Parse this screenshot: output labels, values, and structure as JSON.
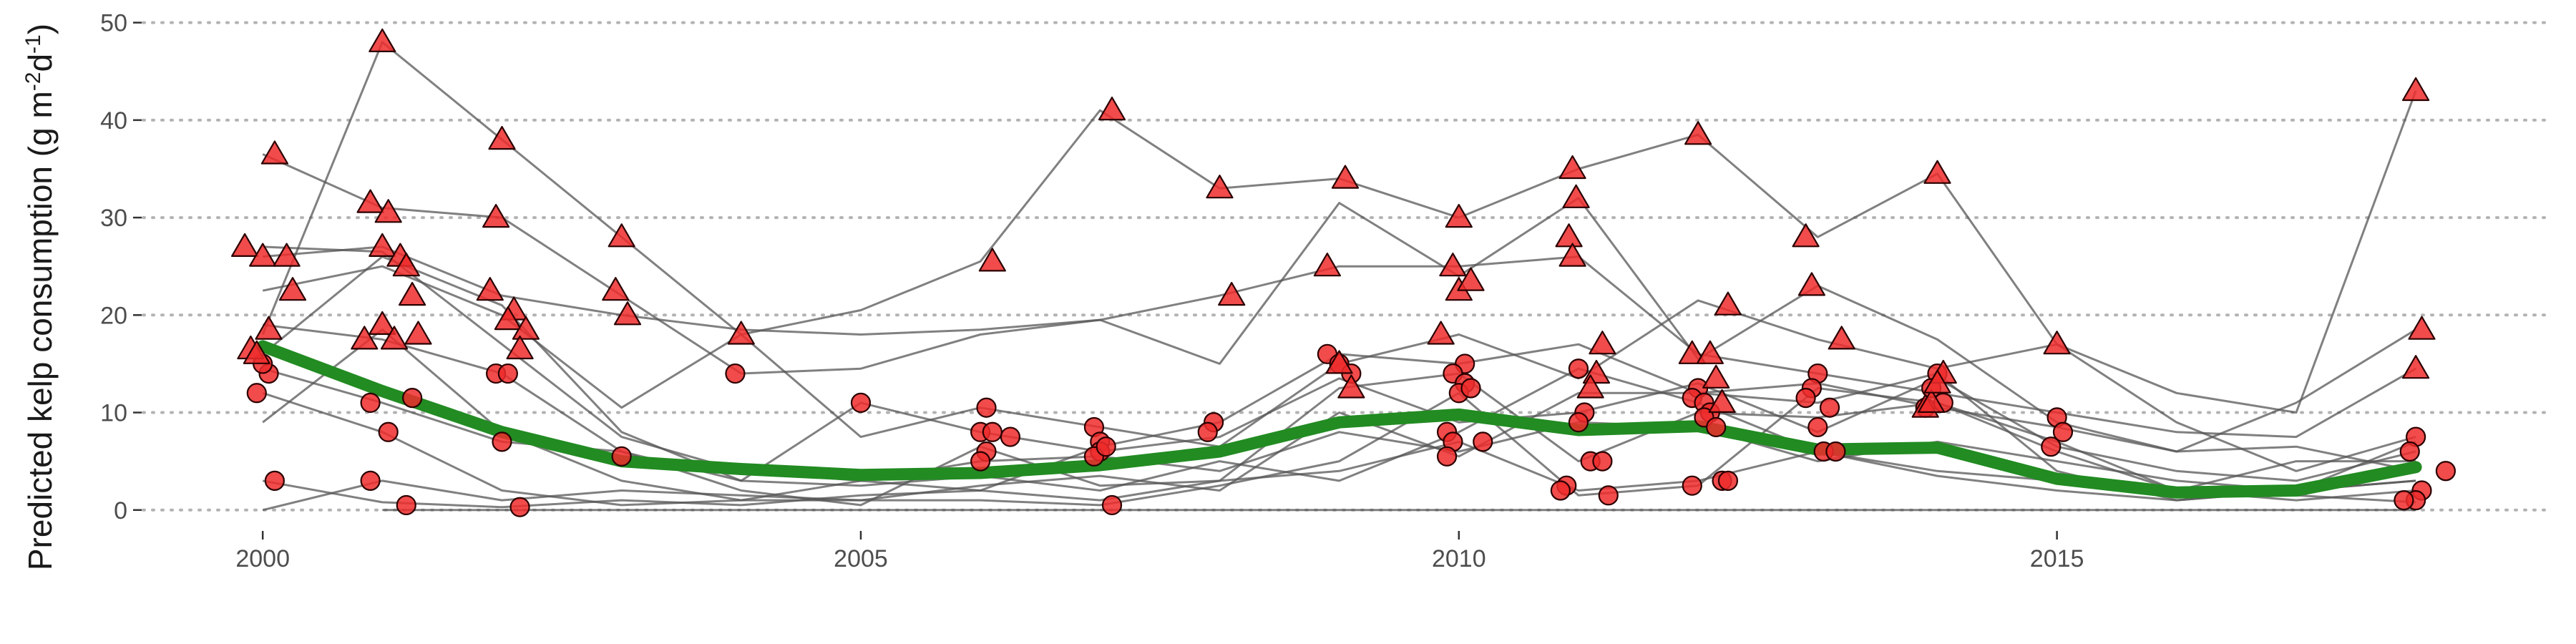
{
  "chart_data": {
    "type": "line",
    "ylabel": "Predicted kelp consumption (g m-2d-1)",
    "ylabel_parts": {
      "main": "Predicted kelp consumption (g m",
      "exp1": "-2",
      "mid": "d",
      "exp2": "-1",
      "close": ")"
    },
    "xlabel": "",
    "xlim": [
      1999.0,
      2019.1
    ],
    "ylim": [
      -2,
      51
    ],
    "x_ticks": [
      2000,
      2005,
      2010,
      2015
    ],
    "y_ticks": [
      0,
      10,
      20,
      30,
      40,
      50
    ],
    "grid": "horizontal dotted",
    "colors": {
      "site_lines": "#555555",
      "points": "#ee2c2c",
      "trend": "#228b22",
      "grid": "#b3b3b3"
    },
    "trend": {
      "name": "mean",
      "x": [
        2000,
        2001,
        2002,
        2003,
        2004,
        2005,
        2006,
        2007,
        2008,
        2009,
        2010,
        2011,
        2012,
        2013,
        2014,
        2015,
        2016,
        2017,
        2018
      ],
      "y": [
        16.8,
        12.2,
        8.0,
        5.0,
        4.2,
        3.6,
        3.8,
        4.6,
        6.0,
        9.0,
        9.8,
        8.2,
        8.6,
        6.2,
        6.4,
        3.2,
        1.8,
        2.0,
        4.4
      ]
    },
    "site_series": [
      {
        "x": [
          2000,
          2001,
          2002,
          2003,
          2004,
          2005,
          2006,
          2007,
          2008,
          2009,
          2010,
          2011,
          2012,
          2013,
          2014,
          2015,
          2016,
          2017,
          2018
        ],
        "y": [
          18,
          48,
          38,
          28,
          18,
          20.5,
          25.5,
          41,
          33,
          34,
          30,
          35,
          38.5,
          28,
          34.5,
          17,
          12,
          10,
          43
        ]
      },
      {
        "x": [
          2000,
          2001,
          2002,
          2003,
          2004,
          2005,
          2006,
          2007,
          2008,
          2009,
          2010,
          2011,
          2012,
          2013,
          2014,
          2015,
          2016,
          2017,
          2018
        ],
        "y": [
          36.5,
          31,
          30,
          22,
          14,
          14.5,
          18,
          19.5,
          15,
          31.5,
          24,
          32,
          15.5,
          23,
          17.5,
          9,
          6,
          11,
          18.5
        ]
      },
      {
        "x": [
          2000,
          2001,
          2002,
          2003,
          2004,
          2005,
          2006,
          2007,
          2008,
          2009,
          2010,
          2011,
          2012,
          2013,
          2014,
          2015,
          2016,
          2017,
          2018
        ],
        "y": [
          26,
          27,
          22,
          20,
          18.5,
          18,
          18.5,
          19.5,
          22,
          25,
          25,
          26,
          16,
          14,
          12,
          10,
          8,
          7.5,
          14.5
        ]
      },
      {
        "x": [
          2000,
          2001,
          2002,
          2003,
          2004,
          2005,
          2006,
          2007,
          2008,
          2009,
          2010,
          2011,
          2012,
          2013,
          2014,
          2015,
          2016,
          2017,
          2018
        ],
        "y": [
          22.5,
          25,
          20,
          10.5,
          18,
          7.5,
          10.5,
          8.5,
          6.5,
          15,
          18,
          13.5,
          21.5,
          17.5,
          14.5,
          17,
          9,
          4,
          7.5
        ]
      },
      {
        "x": [
          2000,
          2001,
          2002,
          2003,
          2004,
          2005,
          2006,
          2007,
          2008,
          2009,
          2010,
          2011,
          2012,
          2013,
          2014,
          2015,
          2016,
          2017,
          2018
        ],
        "y": [
          27,
          26.5,
          17,
          7.5,
          4,
          3,
          2,
          6.5,
          9,
          16,
          15,
          17,
          12,
          13,
          10.5,
          8.5,
          6,
          6.5,
          4
        ]
      },
      {
        "x": [
          2000,
          2001,
          2002,
          2003,
          2004,
          2005,
          2006,
          2007,
          2008,
          2009,
          2010,
          2011,
          2012,
          2013,
          2014,
          2015,
          2016,
          2017,
          2018
        ],
        "y": [
          19,
          17.5,
          14,
          6,
          3,
          11,
          8,
          6,
          7.5,
          13.5,
          9,
          10,
          13,
          8,
          13.5,
          6.5,
          4,
          3,
          6
        ]
      },
      {
        "x": [
          2000,
          2001,
          2002,
          2003,
          2004,
          2005,
          2006,
          2007,
          2008,
          2009,
          2010,
          2011,
          2012,
          2013,
          2014,
          2015,
          2016,
          2017,
          2018
        ],
        "y": [
          14.5,
          11,
          7,
          6,
          2,
          0.5,
          6.5,
          2.5,
          3,
          12.5,
          14,
          5,
          10,
          9.5,
          11,
          7,
          2,
          1,
          2
        ]
      },
      {
        "x": [
          2000,
          2001,
          2002,
          2003,
          2004,
          2005,
          2006,
          2007,
          2008,
          2009,
          2010,
          2011,
          2012,
          2013,
          2014,
          2015,
          2016,
          2017,
          2018
        ],
        "y": [
          12,
          8,
          2,
          0.5,
          1,
          3,
          5,
          5.5,
          4,
          8,
          6,
          9,
          8.5,
          5,
          7,
          5,
          3,
          2,
          7
        ]
      },
      {
        "x": [
          2000,
          2001,
          2002,
          2003,
          2004,
          2005,
          2006,
          2007,
          2008,
          2009,
          2010,
          2011,
          2012,
          2013,
          2014,
          2015,
          2016,
          2017,
          2018
        ],
        "y": [
          3,
          0.8,
          0.3,
          1,
          0.5,
          1.5,
          2,
          1,
          3,
          4,
          7,
          2,
          3,
          6,
          3.5,
          2,
          1,
          2,
          3
        ]
      },
      {
        "x": [
          2000,
          2001,
          2002,
          2003,
          2004,
          2005,
          2006,
          2007,
          2008,
          2009,
          2010,
          2011,
          2012,
          2013,
          2014,
          2015,
          2016,
          2017,
          2018
        ],
        "y": [
          0,
          3,
          1,
          2,
          1.5,
          1,
          1,
          0.5,
          2.5,
          5,
          12,
          1.5,
          2.5,
          12.5,
          11,
          6,
          2,
          1.5,
          0.8
        ]
      },
      {
        "x": [
          2000,
          2001,
          2002,
          2003,
          2004,
          2005,
          2006,
          2007,
          2008,
          2009,
          2010,
          2011,
          2012,
          2013,
          2014,
          2015,
          2016,
          2017,
          2018
        ],
        "y": [
          16,
          26,
          21,
          8,
          3,
          2.5,
          3.5,
          2,
          5,
          3,
          8,
          14.5,
          11,
          6,
          4,
          3,
          2,
          5,
          5
        ]
      },
      {
        "x": [
          2000,
          2001,
          2002,
          2003,
          2004,
          2005,
          2006,
          2007,
          2008,
          2009,
          2010,
          2011,
          2012,
          2013,
          2014,
          2015,
          2016,
          2017,
          2018
        ],
        "y": [
          9,
          18.5,
          8,
          3,
          1,
          1,
          2.5,
          3.5,
          2,
          10,
          5.5,
          12,
          12,
          11,
          14,
          4,
          1,
          2,
          3
        ]
      },
      {
        "x": [
          2001,
          2002,
          2003,
          2004,
          2005,
          2006,
          2007,
          2008,
          2009,
          2010,
          2011,
          2012,
          2013,
          2014,
          2015,
          2016,
          2017,
          2018
        ],
        "y": [
          0,
          0,
          0,
          0,
          0,
          0,
          0,
          0,
          0,
          0,
          0,
          0,
          0,
          0,
          0,
          0,
          0,
          0
        ]
      }
    ],
    "triangle_points": [
      [
        1999.9,
        16.5
      ],
      [
        2000.1,
        36.5
      ],
      [
        1999.85,
        27
      ],
      [
        2000.0,
        26
      ],
      [
        2000.2,
        26
      ],
      [
        2000.25,
        22.5
      ],
      [
        2000.05,
        18.5
      ],
      [
        1999.95,
        16
      ],
      [
        2001.0,
        48
      ],
      [
        2000.9,
        31.5
      ],
      [
        2001.05,
        30.5
      ],
      [
        2001.0,
        27
      ],
      [
        2001.15,
        26
      ],
      [
        2001.2,
        25
      ],
      [
        2001.25,
        22
      ],
      [
        2001.3,
        18
      ],
      [
        2001.0,
        19
      ],
      [
        2000.85,
        17.5
      ],
      [
        2001.1,
        17.5
      ],
      [
        2002.0,
        38
      ],
      [
        2001.95,
        30
      ],
      [
        2001.9,
        22.5
      ],
      [
        2002.1,
        20.5
      ],
      [
        2002.05,
        19.5
      ],
      [
        2002.2,
        18.5
      ],
      [
        2002.15,
        16.5
      ],
      [
        2003.0,
        28
      ],
      [
        2002.95,
        22.5
      ],
      [
        2003.05,
        20
      ],
      [
        2004.0,
        18
      ],
      [
        2006.1,
        25.5
      ],
      [
        2007.1,
        41
      ],
      [
        2008.0,
        33
      ],
      [
        2008.1,
        22
      ],
      [
        2008.9,
        25
      ],
      [
        2009.05,
        34
      ],
      [
        2009.0,
        15
      ],
      [
        2009.1,
        12.5
      ],
      [
        2010.0,
        30
      ],
      [
        2009.95,
        25
      ],
      [
        2010.0,
        22.5
      ],
      [
        2010.1,
        23.5
      ],
      [
        2009.85,
        18
      ],
      [
        2010.95,
        35
      ],
      [
        2010.98,
        32
      ],
      [
        2010.92,
        28
      ],
      [
        2010.95,
        26
      ],
      [
        2011.2,
        17
      ],
      [
        2011.15,
        14
      ],
      [
        2011.1,
        12.5
      ],
      [
        2012.0,
        38.5
      ],
      [
        2012.25,
        21
      ],
      [
        2011.95,
        16
      ],
      [
        2012.1,
        16
      ],
      [
        2012.15,
        13.5
      ],
      [
        2012.2,
        11
      ],
      [
        2012.9,
        28
      ],
      [
        2012.95,
        23
      ],
      [
        2013.2,
        17.5
      ],
      [
        2014.0,
        34.5
      ],
      [
        2013.9,
        10.5
      ],
      [
        2013.95,
        11
      ],
      [
        2014.05,
        14
      ],
      [
        2014.0,
        13
      ],
      [
        2015.0,
        17
      ],
      [
        2018.0,
        43
      ],
      [
        2018.05,
        18.5
      ],
      [
        2018.0,
        14.5
      ]
    ],
    "circle_points": [
      [
        1999.95,
        12
      ],
      [
        2000.1,
        3
      ],
      [
        2000.05,
        14
      ],
      [
        2000.0,
        15
      ],
      [
        2000.9,
        11
      ],
      [
        2001.05,
        8
      ],
      [
        2001.25,
        11.5
      ],
      [
        2001.2,
        0.5
      ],
      [
        2000.9,
        3
      ],
      [
        2001.95,
        14
      ],
      [
        2002.05,
        14
      ],
      [
        2002.0,
        7
      ],
      [
        2002.15,
        0.3
      ],
      [
        2003.0,
        5.5
      ],
      [
        2003.95,
        14
      ],
      [
        2005.0,
        11
      ],
      [
        2006.05,
        10.5
      ],
      [
        2006.0,
        8
      ],
      [
        2006.1,
        8
      ],
      [
        2006.25,
        7.5
      ],
      [
        2006.05,
        6
      ],
      [
        2006.0,
        5
      ],
      [
        2006.95,
        8.5
      ],
      [
        2007.0,
        7
      ],
      [
        2007.0,
        6
      ],
      [
        2006.95,
        5.5
      ],
      [
        2007.05,
        6.5
      ],
      [
        2007.1,
        0.5
      ],
      [
        2007.95,
        9
      ],
      [
        2007.9,
        8
      ],
      [
        2008.9,
        16
      ],
      [
        2009.0,
        15
      ],
      [
        2009.1,
        14
      ],
      [
        2010.05,
        15
      ],
      [
        2009.95,
        14
      ],
      [
        2010.05,
        13
      ],
      [
        2010.0,
        12
      ],
      [
        2010.1,
        12.5
      ],
      [
        2009.9,
        8
      ],
      [
        2009.95,
        7
      ],
      [
        2009.9,
        5.5
      ],
      [
        2010.2,
        7
      ],
      [
        2011.0,
        14.5
      ],
      [
        2011.05,
        10
      ],
      [
        2011.0,
        9
      ],
      [
        2010.9,
        2.5
      ],
      [
        2011.1,
        5
      ],
      [
        2011.2,
        5
      ],
      [
        2011.25,
        1.5
      ],
      [
        2010.85,
        2
      ],
      [
        2012.0,
        12.5
      ],
      [
        2011.95,
        11.5
      ],
      [
        2012.05,
        11
      ],
      [
        2012.1,
        10
      ],
      [
        2012.05,
        9.5
      ],
      [
        2012.15,
        8.5
      ],
      [
        2011.95,
        2.5
      ],
      [
        2012.2,
        3
      ],
      [
        2012.25,
        3
      ],
      [
        2013.0,
        14
      ],
      [
        2012.95,
        12.5
      ],
      [
        2012.9,
        11.5
      ],
      [
        2013.1,
        10.5
      ],
      [
        2013.0,
        8.5
      ],
      [
        2013.05,
        6
      ],
      [
        2013.15,
        6
      ],
      [
        2014.0,
        14
      ],
      [
        2013.95,
        12.5
      ],
      [
        2014.05,
        11
      ],
      [
        2013.9,
        10.5
      ],
      [
        2015.0,
        9.5
      ],
      [
        2015.05,
        8
      ],
      [
        2014.95,
        6.5
      ],
      [
        2018.0,
        7.5
      ],
      [
        2017.95,
        6
      ],
      [
        2018.25,
        4
      ],
      [
        2018.05,
        2
      ],
      [
        2018.0,
        1
      ],
      [
        2017.9,
        1
      ]
    ]
  }
}
